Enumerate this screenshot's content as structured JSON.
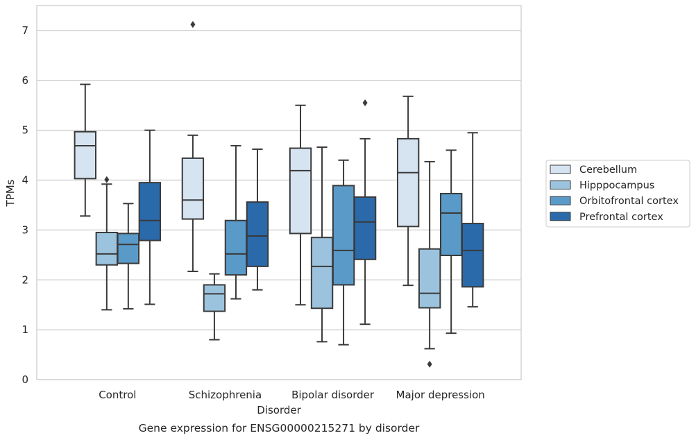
{
  "chart_data": {
    "type": "boxplot",
    "caption": "Gene expression for ENSG00000215271 by disorder",
    "xlabel": "Disorder",
    "ylabel": "TPMs",
    "ylim": [
      0,
      7.5
    ],
    "yticks": [
      0,
      1,
      2,
      3,
      4,
      5,
      6,
      7
    ],
    "grid": true,
    "legend_position": "right",
    "categories": [
      "Control",
      "Schizophrenia",
      "Bipolar disorder",
      "Major depression"
    ],
    "series": [
      {
        "name": "Cerebellum",
        "color": "#d6e4f2",
        "boxes": [
          {
            "min": 3.28,
            "q1": 4.03,
            "median": 4.69,
            "q3": 4.97,
            "max": 5.92,
            "outliers": []
          },
          {
            "min": 2.17,
            "q1": 3.22,
            "median": 3.6,
            "q3": 4.44,
            "max": 4.9,
            "outliers": [
              7.12
            ]
          },
          {
            "min": 1.5,
            "q1": 2.93,
            "median": 4.19,
            "q3": 4.64,
            "max": 5.5,
            "outliers": []
          },
          {
            "min": 1.89,
            "q1": 3.07,
            "median": 4.15,
            "q3": 4.83,
            "max": 5.68,
            "outliers": []
          }
        ]
      },
      {
        "name": "Hipppocampus",
        "color": "#9cc3dd",
        "boxes": [
          {
            "min": 1.4,
            "q1": 2.3,
            "median": 2.52,
            "q3": 2.95,
            "max": 3.92,
            "outliers": [
              4.01
            ]
          },
          {
            "min": 0.8,
            "q1": 1.37,
            "median": 1.72,
            "q3": 1.9,
            "max": 2.12,
            "outliers": []
          },
          {
            "min": 0.76,
            "q1": 1.43,
            "median": 2.27,
            "q3": 2.85,
            "max": 4.66,
            "outliers": []
          },
          {
            "min": 0.62,
            "q1": 1.44,
            "median": 1.73,
            "q3": 2.62,
            "max": 4.37,
            "outliers": [
              0.31
            ]
          }
        ]
      },
      {
        "name": "Orbitofrontal cortex",
        "color": "#5a9ac8",
        "boxes": [
          {
            "min": 1.42,
            "q1": 2.33,
            "median": 2.71,
            "q3": 2.93,
            "max": 3.53,
            "outliers": []
          },
          {
            "min": 1.62,
            "q1": 2.1,
            "median": 2.52,
            "q3": 3.19,
            "max": 4.69,
            "outliers": []
          },
          {
            "min": 0.7,
            "q1": 1.9,
            "median": 2.59,
            "q3": 3.89,
            "max": 4.4,
            "outliers": []
          },
          {
            "min": 0.93,
            "q1": 2.49,
            "median": 3.34,
            "q3": 3.73,
            "max": 4.6,
            "outliers": []
          }
        ]
      },
      {
        "name": "Prefrontal cortex",
        "color": "#2a6aab",
        "boxes": [
          {
            "min": 1.51,
            "q1": 2.79,
            "median": 3.19,
            "q3": 3.95,
            "max": 5.0,
            "outliers": []
          },
          {
            "min": 1.8,
            "q1": 2.27,
            "median": 2.88,
            "q3": 3.56,
            "max": 4.62,
            "outliers": []
          },
          {
            "min": 1.11,
            "q1": 2.41,
            "median": 3.16,
            "q3": 3.66,
            "max": 4.83,
            "outliers": [
              5.55
            ]
          },
          {
            "min": 1.46,
            "q1": 1.86,
            "median": 2.59,
            "q3": 3.13,
            "max": 4.95,
            "outliers": []
          }
        ]
      }
    ]
  }
}
